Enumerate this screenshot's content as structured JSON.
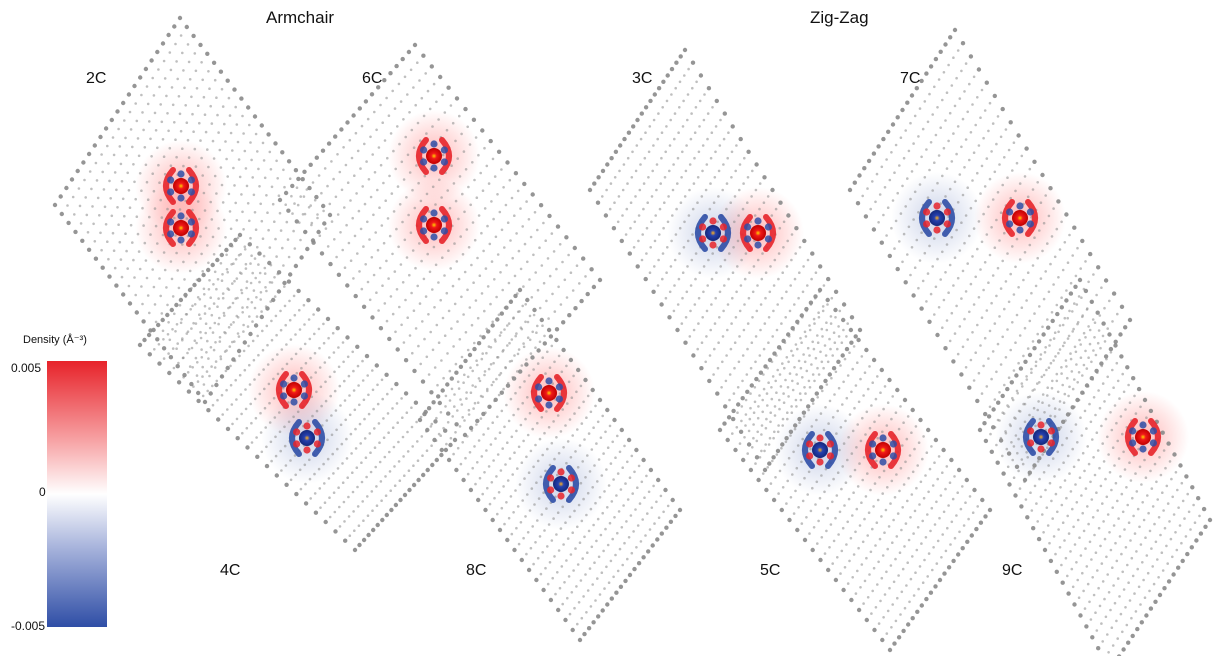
{
  "headings": {
    "armchair": "Armchair",
    "zigzag": "Zig-Zag"
  },
  "panels": [
    {
      "label": "2C",
      "family": "armchair"
    },
    {
      "label": "4C",
      "family": "armchair"
    },
    {
      "label": "6C",
      "family": "armchair"
    },
    {
      "label": "8C",
      "family": "armchair"
    },
    {
      "label": "3C",
      "family": "zigzag"
    },
    {
      "label": "5C",
      "family": "zigzag"
    },
    {
      "label": "7C",
      "family": "zigzag"
    },
    {
      "label": "9C",
      "family": "zigzag"
    }
  ],
  "colorbar": {
    "title": "Density (Å⁻³)",
    "max_label": "0.005",
    "mid_label": "0",
    "min_label": "-0.005",
    "colors": {
      "positive": "#e7232a",
      "zero": "#ffffff",
      "negative": "#2f4ea6"
    }
  },
  "atom_color": "#8a8a8a"
}
